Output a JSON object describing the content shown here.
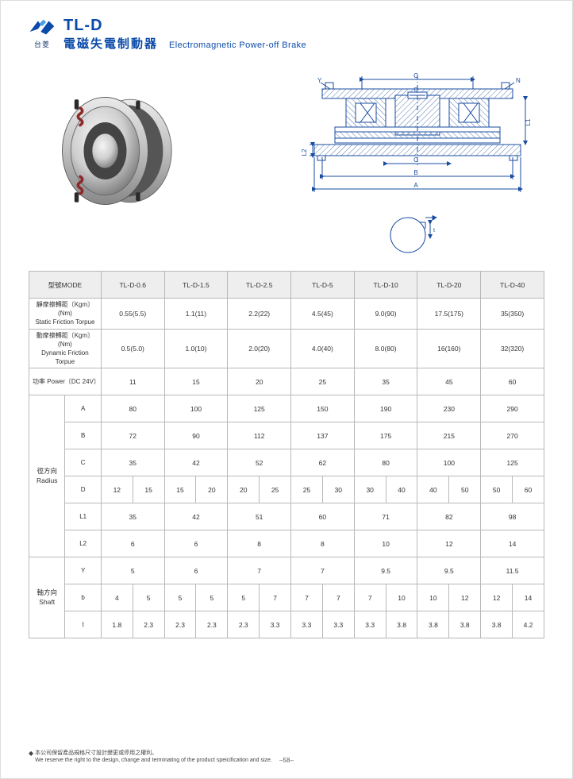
{
  "header": {
    "brand_cn": "台菱",
    "model": "TL-D",
    "subtitle_cn": "電磁失電制動器",
    "subtitle_en": "Electromagnetic Power-off Brake"
  },
  "diagram_labels": {
    "a": "A",
    "b": "B",
    "c": "C",
    "d": "D",
    "l1": "L1",
    "l2": "L2",
    "y": "Y",
    "n": "N",
    "bs": "b",
    "t": "t"
  },
  "table": {
    "mode_label": "型號MODE",
    "models": [
      "TL-D-0.6",
      "TL-D-1.5",
      "TL-D-2.5",
      "TL-D-5",
      "TL-D-10",
      "TL-D-20",
      "TL-D-40"
    ],
    "rows_simple": [
      {
        "label_cn": "靜摩擦轉距〔Kgm〕(Nm)",
        "label_en": "Static Friction Torpue",
        "vals": [
          "0.55(5.5)",
          "1.1(11)",
          "2.2(22)",
          "4.5(45)",
          "9.0(90)",
          "17.5(175)",
          "35(350)"
        ]
      },
      {
        "label_cn": "動摩擦轉距〔Kgm〕(Nm)",
        "label_en": "Dynamic Friction Torpue",
        "vals": [
          "0.5(5.0)",
          "1.0(10)",
          "2.0(20)",
          "4.0(40)",
          "8.0(80)",
          "16(160)",
          "32(320)"
        ]
      },
      {
        "label_cn": "功率 Power〔DC 24V〕",
        "label_en": "",
        "vals": [
          "11",
          "15",
          "20",
          "25",
          "35",
          "45",
          "60"
        ]
      }
    ],
    "radius": {
      "group_cn": "徑方向",
      "group_en": "Radius",
      "rows": [
        {
          "k": "A",
          "vals": [
            "80",
            "100",
            "125",
            "150",
            "190",
            "230",
            "290"
          ]
        },
        {
          "k": "B",
          "vals": [
            "72",
            "90",
            "112",
            "137",
            "175",
            "215",
            "270"
          ]
        },
        {
          "k": "C",
          "vals": [
            "35",
            "42",
            "52",
            "62",
            "80",
            "100",
            "125"
          ]
        },
        {
          "k": "D",
          "split": true,
          "vals": [
            "12",
            "15",
            "15",
            "20",
            "20",
            "25",
            "25",
            "30",
            "30",
            "40",
            "40",
            "50",
            "50",
            "60"
          ]
        },
        {
          "k": "L1",
          "vals": [
            "35",
            "42",
            "51",
            "60",
            "71",
            "82",
            "98"
          ]
        },
        {
          "k": "L2",
          "vals": [
            "6",
            "6",
            "8",
            "8",
            "10",
            "12",
            "14"
          ]
        }
      ]
    },
    "shaft": {
      "group_cn": "軸方向",
      "group_en": "Shaft",
      "rows": [
        {
          "k": "Y",
          "vals": [
            "5",
            "6",
            "7",
            "7",
            "9.5",
            "9.5",
            "11.5"
          ]
        },
        {
          "k": "b",
          "split": true,
          "vals": [
            "4",
            "5",
            "5",
            "5",
            "5",
            "7",
            "7",
            "7",
            "7",
            "10",
            "10",
            "12",
            "12",
            "14"
          ]
        },
        {
          "k": "t",
          "split": true,
          "vals": [
            "1.8",
            "2.3",
            "2.3",
            "2.3",
            "2.3",
            "3.3",
            "3.3",
            "3.3",
            "3.3",
            "3.8",
            "3.8",
            "3.8",
            "3.8",
            "4.2"
          ]
        }
      ]
    }
  },
  "footer": {
    "line_cn": "本公司保留產品規格尺寸設計變更或停用之權利。",
    "line_en": "We reserve the right to the design, change and terminating of the product speicification and size.",
    "page": "–58–"
  },
  "colors": {
    "accent": "#0a4aa8",
    "diagram": "#1a4ca0",
    "hatch": "#5a7ab0",
    "border": "#b8b8b8",
    "header_bg": "#eeeeee",
    "metal_light": "#d8d8d8",
    "metal_dark": "#888888",
    "spring": "#8b2a2a"
  }
}
